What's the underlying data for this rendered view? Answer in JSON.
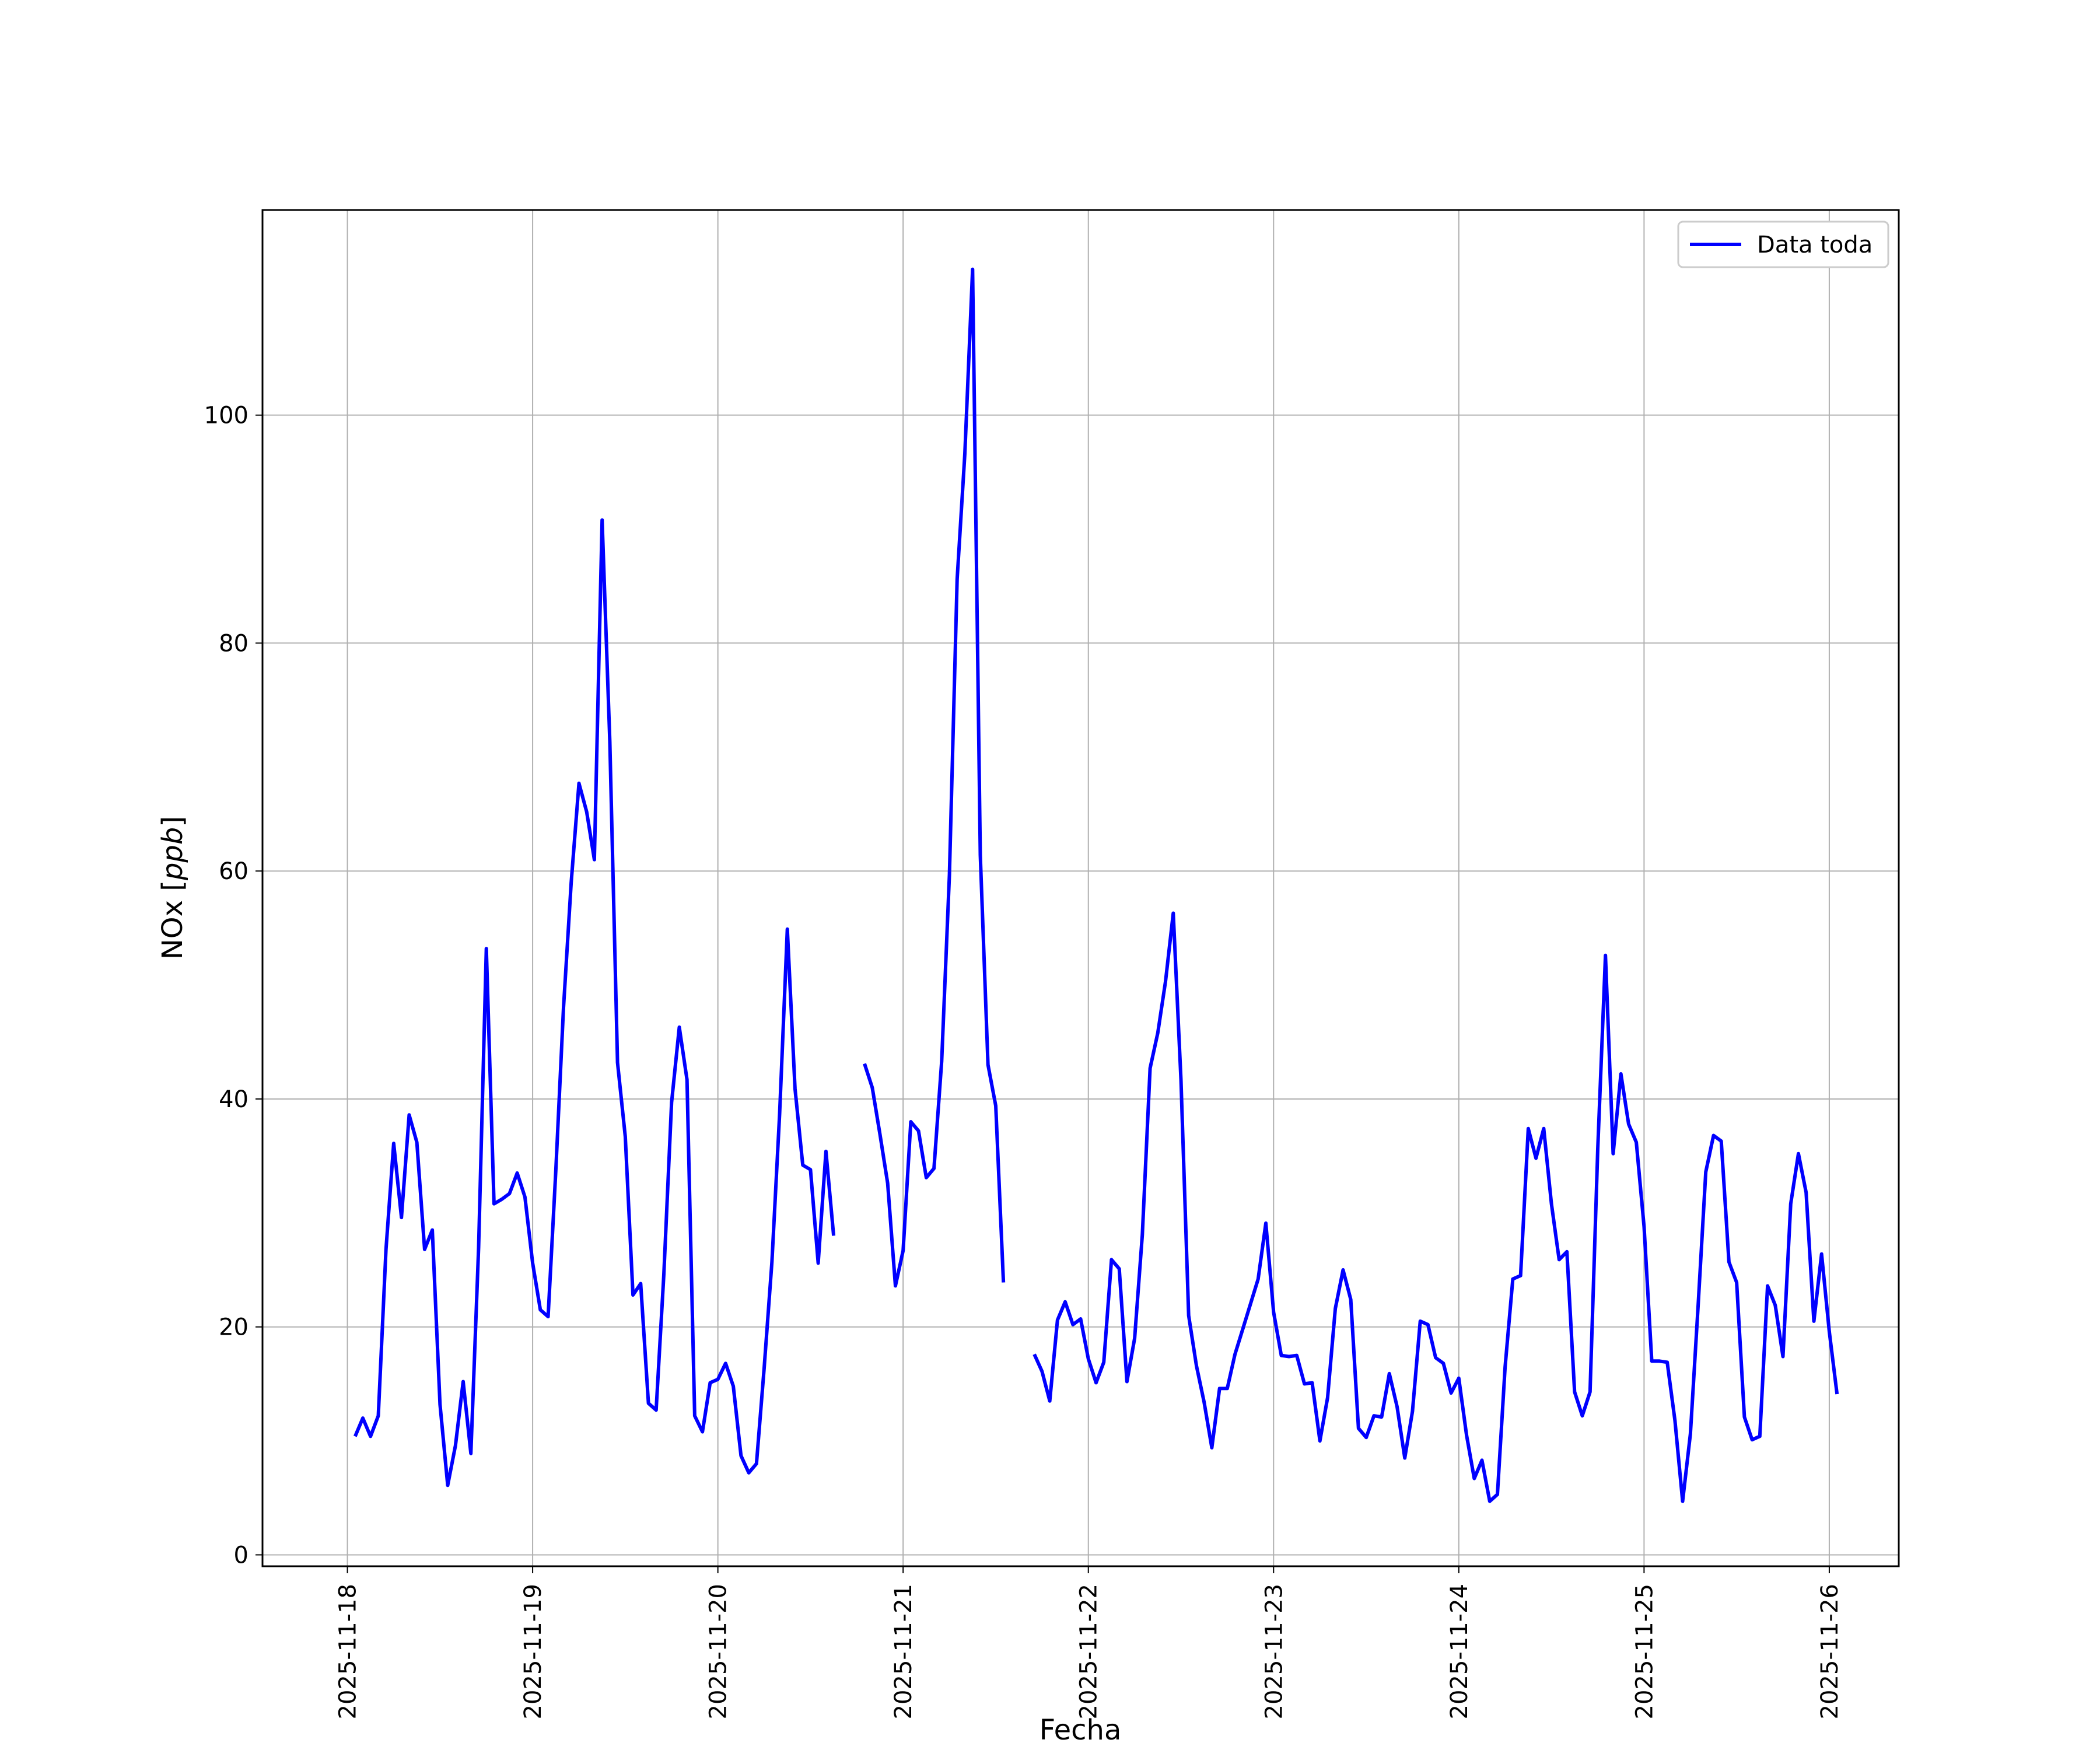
{
  "chart_data": {
    "type": "line",
    "title": "",
    "xlabel": "Fecha",
    "ylabel_main": "NOx [",
    "ylabel_unit": "ppb",
    "ylabel_close": "]",
    "xlim": [
      "2025-11-17T13:00",
      "2025-11-26T09:00"
    ],
    "ylim": [
      -1,
      118
    ],
    "grid": true,
    "legend_position": "top-right",
    "x_ticks": [
      "2025-11-18",
      "2025-11-19",
      "2025-11-20",
      "2025-11-21",
      "2025-11-22",
      "2025-11-23",
      "2025-11-24",
      "2025-11-25",
      "2025-11-26"
    ],
    "y_ticks": [
      0,
      20,
      40,
      60,
      80,
      100
    ],
    "color": "#0000ff",
    "series": [
      {
        "name": "Data toda",
        "points": [
          [
            "2025-11-18T01:00",
            10.4
          ],
          [
            "2025-11-18T02:00",
            12.0
          ],
          [
            "2025-11-18T03:00",
            10.4
          ],
          [
            "2025-11-18T04:00",
            12.2
          ],
          [
            "2025-11-18T05:00",
            26.8
          ],
          [
            "2025-11-18T06:00",
            36.1
          ],
          [
            "2025-11-18T07:00",
            29.6
          ],
          [
            "2025-11-18T08:00",
            38.6
          ],
          [
            "2025-11-18T09:00",
            36.2
          ],
          [
            "2025-11-18T10:00",
            26.8
          ],
          [
            "2025-11-18T11:00",
            28.5
          ],
          [
            "2025-11-18T12:00",
            13.2
          ],
          [
            "2025-11-18T13:00",
            6.1
          ],
          [
            "2025-11-18T14:00",
            9.6
          ],
          [
            "2025-11-18T15:00",
            15.2
          ],
          [
            "2025-11-18T16:00",
            8.9
          ],
          [
            "2025-11-18T17:00",
            27.0
          ],
          [
            "2025-11-18T18:00",
            53.2
          ],
          [
            "2025-11-18T19:00",
            30.8
          ],
          [
            "2025-11-18T20:00",
            31.2
          ],
          [
            "2025-11-18T21:00",
            31.7
          ],
          [
            "2025-11-18T22:00",
            33.5
          ],
          [
            "2025-11-18T23:00",
            31.4
          ],
          [
            "2025-11-19T00:00",
            25.6
          ],
          [
            "2025-11-19T01:00",
            21.5
          ],
          [
            "2025-11-19T02:00",
            20.9
          ],
          [
            "2025-11-19T03:00",
            33.7
          ],
          [
            "2025-11-19T04:00",
            48.0
          ],
          [
            "2025-11-19T05:00",
            59.0
          ],
          [
            "2025-11-19T06:00",
            67.7
          ],
          [
            "2025-11-19T07:00",
            65.2
          ],
          [
            "2025-11-19T08:00",
            61.0
          ],
          [
            "2025-11-19T09:00",
            90.8
          ],
          [
            "2025-11-19T10:00",
            71.4
          ],
          [
            "2025-11-19T11:00",
            43.2
          ],
          [
            "2025-11-19T12:00",
            36.7
          ],
          [
            "2025-11-19T13:00",
            22.8
          ],
          [
            "2025-11-19T14:00",
            23.8
          ],
          [
            "2025-11-19T15:00",
            13.3
          ],
          [
            "2025-11-19T16:00",
            12.7
          ],
          [
            "2025-11-19T17:00",
            24.6
          ],
          [
            "2025-11-19T18:00",
            39.7
          ],
          [
            "2025-11-19T19:00",
            46.3
          ],
          [
            "2025-11-19T20:00",
            41.7
          ],
          [
            "2025-11-19T21:00",
            12.2
          ],
          [
            "2025-11-19T22:00",
            10.8
          ],
          [
            "2025-11-19T23:00",
            15.1
          ],
          [
            "2025-11-20T00:00",
            15.4
          ],
          [
            "2025-11-20T01:00",
            16.8
          ],
          [
            "2025-11-20T02:00",
            14.8
          ],
          [
            "2025-11-20T03:00",
            8.7
          ],
          [
            "2025-11-20T04:00",
            7.2
          ],
          [
            "2025-11-20T05:00",
            8.0
          ],
          [
            "2025-11-20T06:00",
            16.4
          ],
          [
            "2025-11-20T07:00",
            25.7
          ],
          [
            "2025-11-20T08:00",
            38.7
          ],
          [
            "2025-11-20T09:00",
            54.9
          ],
          [
            "2025-11-20T10:00",
            40.9
          ],
          [
            "2025-11-20T11:00",
            34.2
          ],
          [
            "2025-11-20T12:00",
            33.8
          ],
          [
            "2025-11-20T13:00",
            25.6
          ],
          [
            "2025-11-20T14:00",
            35.4
          ],
          [
            "2025-11-20T15:00",
            28.0
          ],
          null,
          [
            "2025-11-20T19:00",
            43.1
          ],
          [
            "2025-11-20T20:00",
            41.0
          ],
          [
            "2025-11-20T21:00",
            36.9
          ],
          [
            "2025-11-20T22:00",
            32.6
          ],
          [
            "2025-11-20T23:00",
            23.6
          ],
          [
            "2025-11-21T00:00",
            26.7
          ],
          [
            "2025-11-21T01:00",
            38.0
          ],
          [
            "2025-11-21T02:00",
            37.2
          ],
          [
            "2025-11-21T03:00",
            33.1
          ],
          [
            "2025-11-21T04:00",
            33.9
          ],
          [
            "2025-11-21T05:00",
            43.3
          ],
          [
            "2025-11-21T06:00",
            59.7
          ],
          [
            "2025-11-21T07:00",
            85.6
          ],
          [
            "2025-11-21T08:00",
            96.6
          ],
          [
            "2025-11-21T09:00",
            112.8
          ],
          [
            "2025-11-21T10:00",
            61.4
          ],
          [
            "2025-11-21T11:00",
            43.0
          ],
          [
            "2025-11-21T12:00",
            39.4
          ],
          [
            "2025-11-21T13:00",
            23.9
          ],
          null,
          [
            "2025-11-21T17:00",
            17.6
          ],
          [
            "2025-11-21T18:00",
            16.1
          ],
          [
            "2025-11-21T19:00",
            13.5
          ],
          [
            "2025-11-21T20:00",
            20.6
          ],
          [
            "2025-11-21T21:00",
            22.2
          ],
          [
            "2025-11-21T22:00",
            20.2
          ],
          [
            "2025-11-21T23:00",
            20.7
          ],
          [
            "2025-11-22T00:00",
            17.2
          ],
          [
            "2025-11-22T01:00",
            15.1
          ],
          [
            "2025-11-22T02:00",
            16.9
          ],
          [
            "2025-11-22T03:00",
            25.9
          ],
          [
            "2025-11-22T04:00",
            25.1
          ],
          [
            "2025-11-22T05:00",
            15.2
          ],
          [
            "2025-11-22T06:00",
            19.0
          ],
          [
            "2025-11-22T07:00",
            28.1
          ],
          [
            "2025-11-22T08:00",
            42.7
          ],
          [
            "2025-11-22T09:00",
            45.8
          ],
          [
            "2025-11-22T10:00",
            50.3
          ],
          [
            "2025-11-22T11:00",
            56.3
          ],
          [
            "2025-11-22T12:00",
            41.7
          ],
          [
            "2025-11-22T13:00",
            21.0
          ],
          [
            "2025-11-22T14:00",
            16.6
          ],
          [
            "2025-11-22T15:00",
            13.4
          ],
          [
            "2025-11-22T16:00",
            9.4
          ],
          [
            "2025-11-22T17:00",
            14.6
          ],
          [
            "2025-11-22T18:00",
            14.6
          ],
          [
            "2025-11-22T19:00",
            17.6
          ],
          [
            "2025-11-22T20:00",
            19.8
          ],
          [
            "2025-11-22T21:00",
            22.0
          ],
          [
            "2025-11-22T22:00",
            24.2
          ],
          [
            "2025-11-22T23:00",
            29.1
          ],
          [
            "2025-11-23T00:00",
            21.3
          ],
          [
            "2025-11-23T01:00",
            17.5
          ],
          [
            "2025-11-23T02:00",
            17.4
          ],
          [
            "2025-11-23T03:00",
            17.5
          ],
          [
            "2025-11-23T04:00",
            15.0
          ],
          [
            "2025-11-23T05:00",
            15.1
          ],
          [
            "2025-11-23T06:00",
            10.0
          ],
          [
            "2025-11-23T07:00",
            13.8
          ],
          [
            "2025-11-23T08:00",
            21.6
          ],
          [
            "2025-11-23T09:00",
            25.0
          ],
          [
            "2025-11-23T10:00",
            22.4
          ],
          [
            "2025-11-23T11:00",
            11.1
          ],
          [
            "2025-11-23T12:00",
            10.3
          ],
          [
            "2025-11-23T13:00",
            12.2
          ],
          [
            "2025-11-23T14:00",
            12.1
          ],
          [
            "2025-11-23T15:00",
            15.9
          ],
          [
            "2025-11-23T16:00",
            13.0
          ],
          [
            "2025-11-23T17:00",
            8.5
          ],
          [
            "2025-11-23T18:00",
            12.6
          ],
          [
            "2025-11-23T19:00",
            20.5
          ],
          [
            "2025-11-23T20:00",
            20.2
          ],
          [
            "2025-11-23T21:00",
            17.3
          ],
          [
            "2025-11-23T22:00",
            16.8
          ],
          [
            "2025-11-23T23:00",
            14.2
          ],
          [
            "2025-11-24T00:00",
            15.5
          ],
          [
            "2025-11-24T01:00",
            10.5
          ],
          [
            "2025-11-24T02:00",
            6.7
          ],
          [
            "2025-11-24T03:00",
            8.3
          ],
          [
            "2025-11-24T04:00",
            4.7
          ],
          [
            "2025-11-24T05:00",
            5.3
          ],
          [
            "2025-11-24T06:00",
            16.5
          ],
          [
            "2025-11-24T07:00",
            24.2
          ],
          [
            "2025-11-24T08:00",
            24.5
          ],
          [
            "2025-11-24T09:00",
            37.4
          ],
          [
            "2025-11-24T10:00",
            34.8
          ],
          [
            "2025-11-24T11:00",
            37.4
          ],
          [
            "2025-11-24T12:00",
            30.8
          ],
          [
            "2025-11-24T13:00",
            25.9
          ],
          [
            "2025-11-24T14:00",
            26.6
          ],
          [
            "2025-11-24T15:00",
            14.3
          ],
          [
            "2025-11-24T16:00",
            12.2
          ],
          [
            "2025-11-24T17:00",
            14.3
          ],
          [
            "2025-11-24T18:00",
            35.6
          ],
          [
            "2025-11-24T19:00",
            52.6
          ],
          [
            "2025-11-24T20:00",
            35.2
          ],
          [
            "2025-11-24T21:00",
            42.2
          ],
          [
            "2025-11-24T22:00",
            37.8
          ],
          [
            "2025-11-24T23:00",
            36.2
          ],
          [
            "2025-11-25T00:00",
            28.8
          ],
          [
            "2025-11-25T01:00",
            17.0
          ],
          [
            "2025-11-25T02:00",
            17.0
          ],
          [
            "2025-11-25T03:00",
            16.9
          ],
          [
            "2025-11-25T04:00",
            11.8
          ],
          [
            "2025-11-25T05:00",
            4.7
          ],
          [
            "2025-11-25T06:00",
            10.6
          ],
          [
            "2025-11-25T07:00",
            21.8
          ],
          [
            "2025-11-25T08:00",
            33.6
          ],
          [
            "2025-11-25T09:00",
            36.8
          ],
          [
            "2025-11-25T10:00",
            36.3
          ],
          [
            "2025-11-25T11:00",
            25.7
          ],
          [
            "2025-11-25T12:00",
            23.9
          ],
          [
            "2025-11-25T13:00",
            12.1
          ],
          [
            "2025-11-25T14:00",
            10.1
          ],
          [
            "2025-11-25T15:00",
            10.4
          ],
          [
            "2025-11-25T16:00",
            23.6
          ],
          [
            "2025-11-25T17:00",
            21.9
          ],
          [
            "2025-11-25T18:00",
            17.4
          ],
          [
            "2025-11-25T19:00",
            30.8
          ],
          [
            "2025-11-25T20:00",
            35.2
          ],
          [
            "2025-11-25T21:00",
            31.8
          ],
          [
            "2025-11-25T22:00",
            20.5
          ],
          [
            "2025-11-25T23:00",
            26.4
          ],
          [
            "2025-11-26T00:00",
            19.6
          ],
          [
            "2025-11-26T01:00",
            14.1
          ]
        ]
      }
    ]
  }
}
